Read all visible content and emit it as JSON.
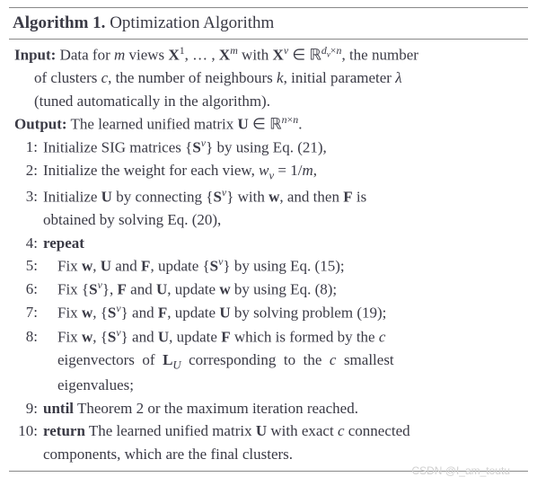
{
  "title_prefix": "Algorithm 1.",
  "title_text": " Optimization Algorithm",
  "input_label": "Input:",
  "input_line1": " Data for m views X¹, … , Xᵐ with Xᵛ ∈ ℝ^{d_v×n}, the number",
  "input_line2": "of clusters c, the number of neighbours k, initial parameter λ",
  "input_line3": "(tuned automatically in the algorithm).",
  "output_label": "Output:",
  "output_text": " The learned unified matrix U ∈ ℝ^{n×n}.",
  "steps": {
    "1": "Initialize SIG matrices {Sᵛ} by using Eq. (21),",
    "2": "Initialize the weight for each view, w_v = 1/m,",
    "3a": "Initialize U by connecting {Sᵛ} with w, and then F is",
    "3b": "obtained by solving Eq. (20),",
    "4": "repeat",
    "5": "Fix w, U and F, update {Sᵛ} by using Eq. (15);",
    "6": "Fix {Sᵛ}, F and U, update w by using Eq. (8);",
    "7": "Fix w, {Sᵛ} and F, update U by solving problem (19);",
    "8a": "Fix w, {Sᵛ} and U, update F which is formed by the c",
    "8b": "eigenvectors of L_U corresponding to the c smallest",
    "8c": "eigenvalues;",
    "9pre": "until",
    "9post": " Theorem 2 or the maximum iteration reached.",
    "10pre": "return",
    "10a": " The learned unified matrix U with exact c connected",
    "10b": "components, which are the final clusters."
  },
  "numbers": {
    "n1": "1:",
    "n2": "2:",
    "n3": "3:",
    "n4": "4:",
    "n5": "5:",
    "n6": "6:",
    "n7": "7:",
    "n8": "8:",
    "n9": "9:",
    "n10": "10:"
  },
  "watermark": "CSDN @I_am_toutu",
  "colors": {
    "text": "#3a3a45",
    "border": "#888888",
    "background": "#ffffff",
    "watermark": "#cfcfcf"
  },
  "typography": {
    "title_fontsize": 19,
    "body_fontsize": 17,
    "line_height": 1.5,
    "font_family": "Times New Roman"
  },
  "structure_type": "algorithm-pseudocode"
}
